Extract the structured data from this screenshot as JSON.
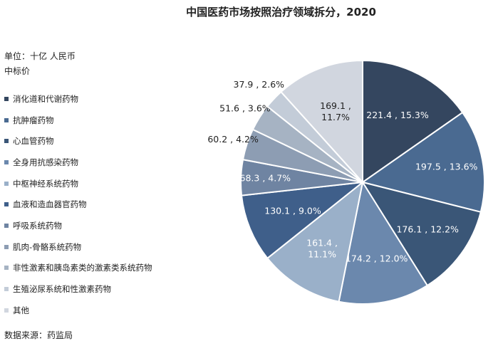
{
  "chart_data": {
    "type": "pie",
    "title": "中国医药市场按照治疗领域拆分，2020",
    "unit_label": "单位：十亿 人民币",
    "subheading": "中标价",
    "source": "数据来源：药监局",
    "legend_position": "left",
    "categories": [
      "消化道和代谢药物",
      "抗肿瘤药物",
      "心血管药物",
      "全身用抗感染药物",
      "中枢神经系统药物",
      "血液和造血器官药物",
      "呼吸系统药物",
      "肌肉-骨骼系统药物",
      "非性激素和胰岛素类的激素类系统药物",
      "生殖泌尿系统和性激素药物",
      "其他"
    ],
    "values": [
      221.4,
      197.5,
      176.1,
      174.2,
      161.4,
      130.1,
      68.3,
      60.2,
      51.6,
      37.9,
      169.1
    ],
    "percents": [
      "15.3%",
      "13.6%",
      "12.2%",
      "12.0%",
      "11.1%",
      "9.0%",
      "4.7%",
      "4.2%",
      "3.6%",
      "2.6%",
      "11.7%"
    ],
    "data_labels": [
      "221.4 , 15.3%",
      "197.5 , 13.6%",
      "176.1 , 12.2%",
      "174.2 , 12.0%",
      "161.4 ,\n11.1%",
      "130.1 , 9.0%",
      "68.3 , 4.7%",
      "60.2 , 4.2%",
      "51.6 , 3.6%",
      "37.9 , 2.6%",
      "169.1 ,\n11.7%"
    ],
    "colors": [
      "#34465f",
      "#4a6a91",
      "#3a5677",
      "#6b88ad",
      "#9ab0c9",
      "#3f5f8a",
      "#6f84a2",
      "#8d9db3",
      "#a6b3c3",
      "#c3ccd8",
      "#d1d6df"
    ]
  }
}
